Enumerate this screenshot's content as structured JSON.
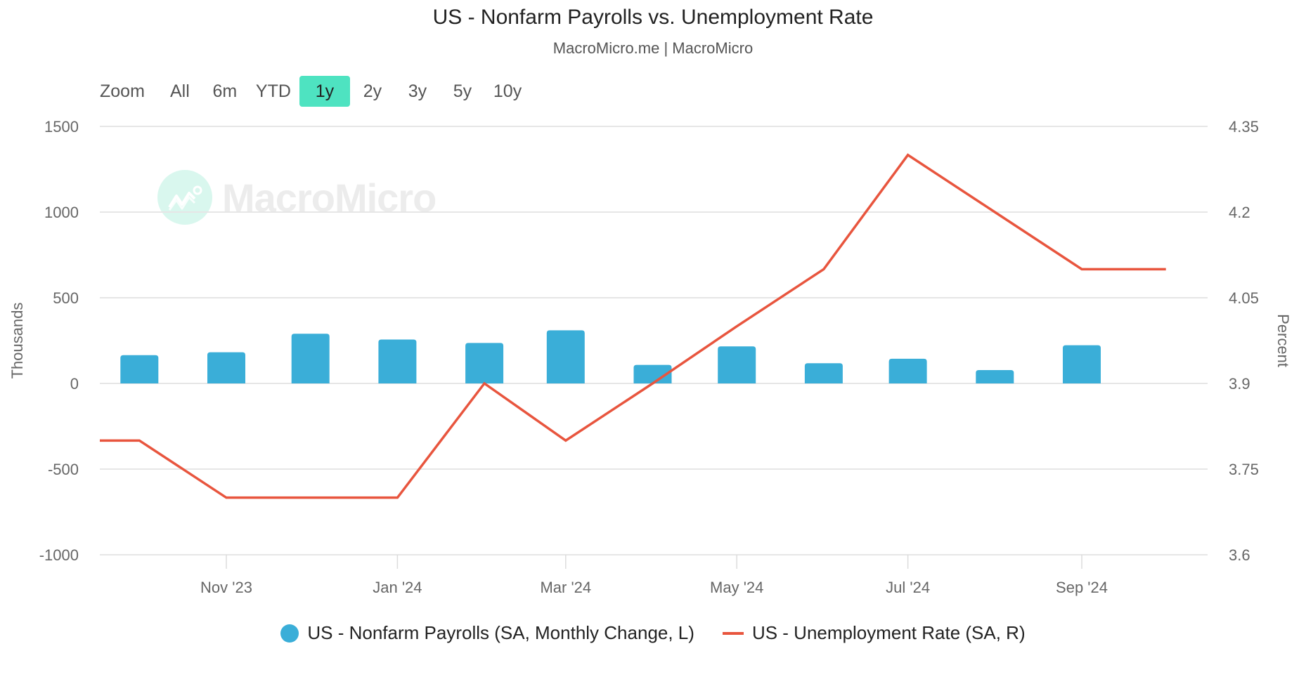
{
  "header": {
    "title": "US - Nonfarm Payrolls vs. Unemployment Rate",
    "subtitle": "MacroMicro.me | MacroMicro"
  },
  "range_selector": {
    "label": "Zoom",
    "buttons": [
      "All",
      "6m",
      "YTD",
      "1y",
      "2y",
      "3y",
      "5y",
      "10y"
    ],
    "active": "1y",
    "active_color": "#4ee3c1"
  },
  "watermark": {
    "text": "MacroMicro",
    "icon": "chart-trend-icon"
  },
  "legend": {
    "items": [
      {
        "label": "US - Nonfarm Payrolls (SA, Monthly Change, L)",
        "symbol": "dot",
        "color": "#3aaed8"
      },
      {
        "label": "US - Unemployment Rate (SA, R)",
        "symbol": "line",
        "color": "#e8553e"
      }
    ]
  },
  "chart_data": {
    "type": "bar+line",
    "title": "US - Nonfarm Payrolls vs. Unemployment Rate",
    "subtitle": "MacroMicro.me | MacroMicro",
    "x_ticks": [
      "Nov '23",
      "Jan '24",
      "Mar '24",
      "May '24",
      "Jul '24",
      "Sep '24"
    ],
    "x_tick_dates": [
      "2023-11-01",
      "2024-01-01",
      "2024-03-01",
      "2024-05-01",
      "2024-07-01",
      "2024-09-01"
    ],
    "x_range": [
      "2023-09-17",
      "2024-11-20"
    ],
    "y_left": {
      "label": "Thousands",
      "range": [
        -1000,
        1500
      ],
      "ticks": [
        "1500",
        "1000",
        "500",
        "0",
        "-500",
        "-1000"
      ],
      "tick_values": [
        1500,
        1000,
        500,
        0,
        -500,
        -1000
      ]
    },
    "y_right": {
      "label": "Percent",
      "range": [
        3.6,
        4.35
      ],
      "ticks": [
        "4.35",
        "4.2",
        "4.05",
        "3.9",
        "3.75",
        "3.6"
      ],
      "tick_values": [
        4.35,
        4.2,
        4.05,
        3.9,
        3.75,
        3.6
      ]
    },
    "grid": true,
    "legend_position": "bottom",
    "series": [
      {
        "name": "US - Nonfarm Payrolls (SA, Monthly Change, L)",
        "type": "bar",
        "axis": "left",
        "color": "#3aaed8",
        "dates": [
          "2023-10-01",
          "2023-11-01",
          "2023-12-01",
          "2024-01-01",
          "2024-02-01",
          "2024-03-01",
          "2024-04-01",
          "2024-05-01",
          "2024-06-01",
          "2024-07-01",
          "2024-08-01",
          "2024-09-01"
        ],
        "values": [
          165,
          182,
          290,
          256,
          236,
          310,
          108,
          216,
          118,
          144,
          78,
          223
        ]
      },
      {
        "name": "US - Unemployment Rate (SA, R)",
        "type": "line",
        "axis": "right",
        "color": "#e8553e",
        "dates": [
          "2023-09-01",
          "2023-10-01",
          "2023-11-01",
          "2023-12-01",
          "2024-01-01",
          "2024-02-01",
          "2024-03-01",
          "2024-04-01",
          "2024-05-01",
          "2024-06-01",
          "2024-07-01",
          "2024-08-01",
          "2024-09-01",
          "2024-10-01"
        ],
        "values": [
          3.8,
          3.8,
          3.7,
          3.7,
          3.7,
          3.9,
          3.8,
          3.9,
          4.0,
          4.1,
          4.3,
          4.2,
          4.1,
          4.1
        ]
      }
    ]
  }
}
